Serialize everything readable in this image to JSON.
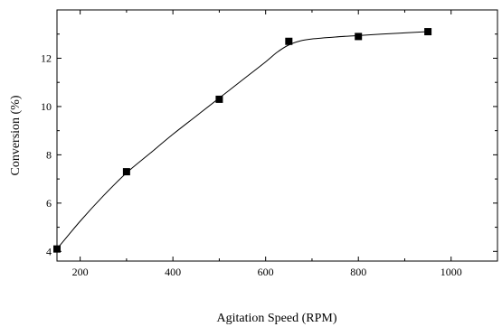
{
  "chart_data": {
    "type": "scatter",
    "title": "",
    "xlabel": "Agitation Speed (RPM)",
    "ylabel": "Conversion (%)",
    "xlim": [
      150,
      1100
    ],
    "ylim": [
      3.6,
      14.0
    ],
    "xticks": [
      200,
      400,
      600,
      800,
      1000
    ],
    "yticks": [
      4,
      6,
      8,
      10,
      12
    ],
    "grid": false,
    "legend": "none",
    "marker": "square",
    "marker_color": "#000000",
    "line_color": "#000000",
    "series": [
      {
        "x": [
          150,
          300,
          500,
          650,
          800,
          950
        ],
        "y": [
          4.1,
          7.3,
          10.3,
          12.7,
          12.9,
          13.1
        ]
      }
    ],
    "fit_curve": {
      "x": [
        150,
        200,
        250,
        300,
        350,
        400,
        450,
        500,
        550,
        600,
        625,
        650,
        675,
        700,
        750,
        800,
        850,
        900,
        950
      ],
      "y": [
        4.1,
        5.25,
        6.3,
        7.25,
        8.05,
        8.85,
        9.6,
        10.35,
        11.1,
        11.85,
        12.25,
        12.55,
        12.72,
        12.8,
        12.88,
        12.94,
        13.0,
        13.05,
        13.1
      ]
    }
  }
}
